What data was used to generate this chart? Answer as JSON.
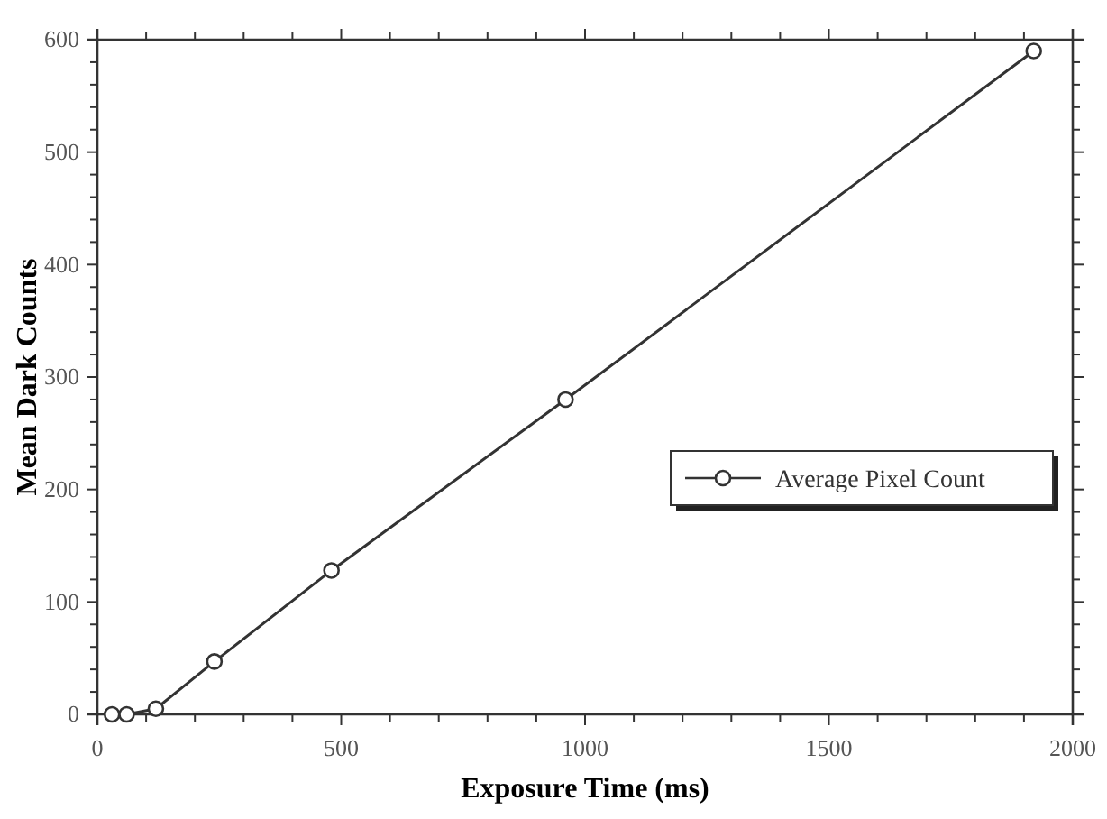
{
  "chart_data": {
    "type": "line",
    "xlabel": "Exposure Time (ms)",
    "ylabel": "Mean Dark Counts",
    "x": [
      30,
      60,
      120,
      240,
      480,
      960,
      1920
    ],
    "series": [
      {
        "name": "Average Pixel Count",
        "color": "#333333",
        "values": [
          0,
          0,
          5,
          47,
          128,
          280,
          590
        ]
      }
    ],
    "xlim": [
      0,
      2000
    ],
    "xticks": [
      0,
      500,
      1000,
      1500,
      2000
    ],
    "ylim": [
      0,
      600
    ],
    "yticks": [
      0,
      100,
      200,
      300,
      400,
      500,
      600
    ],
    "marker": "circle",
    "line_style": "solid",
    "legend": "right",
    "grid": false
  }
}
